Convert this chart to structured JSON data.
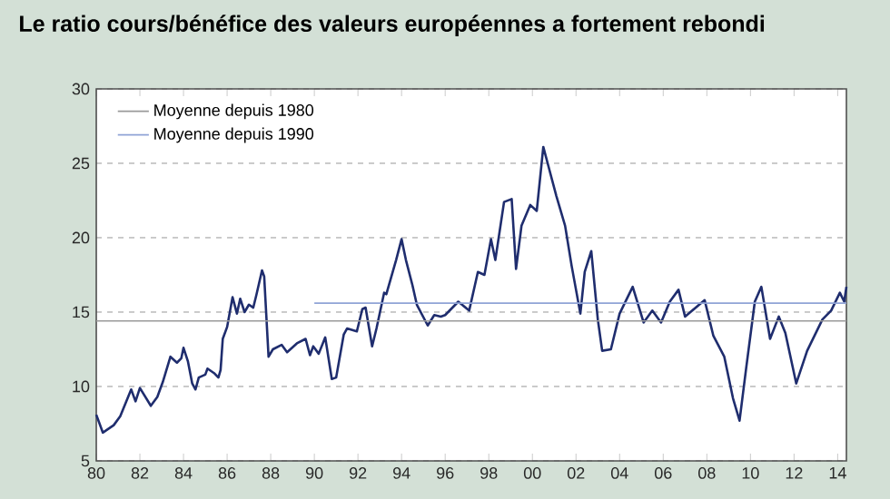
{
  "chart_data": {
    "type": "line",
    "title": "Le ratio cours/bénéfice des valeurs européennes a fortement rebondi",
    "xlim": [
      1980,
      2014.4
    ],
    "ylim": [
      5,
      30
    ],
    "yticks": [
      5,
      10,
      15,
      20,
      25,
      30
    ],
    "xticks": [
      {
        "value": 1980,
        "label": "80"
      },
      {
        "value": 1982,
        "label": "82"
      },
      {
        "value": 1984,
        "label": "84"
      },
      {
        "value": 1986,
        "label": "86"
      },
      {
        "value": 1988,
        "label": "88"
      },
      {
        "value": 1990,
        "label": "90"
      },
      {
        "value": 1992,
        "label": "92"
      },
      {
        "value": 1994,
        "label": "94"
      },
      {
        "value": 1996,
        "label": "96"
      },
      {
        "value": 1998,
        "label": "98"
      },
      {
        "value": 2000,
        "label": "00"
      },
      {
        "value": 2002,
        "label": "02"
      },
      {
        "value": 2004,
        "label": "04"
      },
      {
        "value": 2006,
        "label": "06"
      },
      {
        "value": 2008,
        "label": "08"
      },
      {
        "value": 2010,
        "label": "10"
      },
      {
        "value": 2012,
        "label": "12"
      },
      {
        "value": 2014,
        "label": "14"
      }
    ],
    "grid": "y",
    "legend": "top left",
    "series": [
      {
        "color": "#1f2d6e",
        "x": [
          1980.0,
          1980.3,
          1980.8,
          1981.1,
          1981.6,
          1981.8,
          1982.0,
          1982.5,
          1982.8,
          1983.05,
          1983.4,
          1983.7,
          1983.9,
          1984.0,
          1984.2,
          1984.4,
          1984.55,
          1984.7,
          1985.0,
          1985.1,
          1985.4,
          1985.6,
          1985.7,
          1985.8,
          1986.0,
          1986.25,
          1986.45,
          1986.6,
          1986.8,
          1987.0,
          1987.2,
          1987.35,
          1987.6,
          1987.7,
          1987.9,
          1988.1,
          1988.5,
          1988.75,
          1989.2,
          1989.6,
          1989.8,
          1989.95,
          1990.2,
          1990.5,
          1990.8,
          1991.0,
          1991.35,
          1991.5,
          1991.95,
          1992.2,
          1992.35,
          1992.65,
          1992.85,
          1993.2,
          1993.3,
          1993.75,
          1994.0,
          1994.2,
          1994.5,
          1994.7,
          1995.2,
          1995.5,
          1995.8,
          1996.0,
          1996.6,
          1997.1,
          1997.5,
          1997.8,
          1998.1,
          1998.3,
          1998.7,
          1999.05,
          1999.25,
          1999.5,
          1999.9,
          2000.2,
          2000.5,
          2000.7,
          2001.1,
          2001.5,
          2001.8,
          2002.2,
          2002.4,
          2002.7,
          2003.0,
          2003.2,
          2003.6,
          2004.0,
          2004.6,
          2005.1,
          2005.5,
          2005.9,
          2006.3,
          2006.7,
          2007.0,
          2007.9,
          2008.3,
          2008.8,
          2009.2,
          2009.5,
          2009.8,
          2010.2,
          2010.5,
          2010.9,
          2011.3,
          2011.6,
          2012.1,
          2012.6,
          2013.3,
          2013.7,
          2014.1,
          2014.3,
          2014.4
        ],
        "values": [
          8.1,
          6.9,
          7.4,
          8.0,
          9.8,
          9.0,
          9.9,
          8.7,
          9.3,
          10.3,
          12.0,
          11.6,
          11.9,
          12.6,
          11.7,
          10.2,
          9.8,
          10.6,
          10.8,
          11.2,
          10.9,
          10.6,
          11.1,
          13.2,
          14.0,
          16.0,
          14.9,
          15.9,
          15.0,
          15.5,
          15.3,
          16.2,
          17.8,
          17.4,
          12.0,
          12.5,
          12.8,
          12.3,
          12.9,
          13.2,
          12.1,
          12.7,
          12.2,
          13.3,
          10.5,
          10.6,
          13.5,
          13.9,
          13.7,
          15.2,
          15.3,
          12.7,
          13.9,
          16.3,
          16.2,
          18.5,
          19.9,
          18.5,
          16.8,
          15.5,
          14.1,
          14.8,
          14.7,
          14.8,
          15.7,
          15.1,
          17.7,
          17.5,
          19.9,
          18.5,
          22.4,
          22.6,
          17.9,
          20.8,
          22.2,
          21.8,
          26.1,
          25.0,
          22.8,
          20.8,
          18.1,
          14.9,
          17.7,
          19.1,
          14.5,
          12.4,
          12.5,
          14.9,
          16.7,
          14.3,
          15.1,
          14.3,
          15.7,
          16.5,
          14.7,
          15.8,
          13.4,
          12.0,
          9.2,
          7.7,
          11.2,
          15.7,
          16.7,
          13.2,
          14.7,
          13.6,
          10.2,
          12.4,
          14.5,
          15.1,
          16.3,
          15.7,
          16.7
        ]
      },
      {
        "name": "Moyenne depuis 1980",
        "color": "#9a9a9a",
        "x": [
          1980,
          2014.4
        ],
        "values": [
          14.4,
          14.4
        ]
      },
      {
        "name": "Moyenne depuis 1990",
        "color": "#8fa3d6",
        "x": [
          1990,
          2014.4
        ],
        "values": [
          15.6,
          15.6
        ]
      }
    ]
  }
}
